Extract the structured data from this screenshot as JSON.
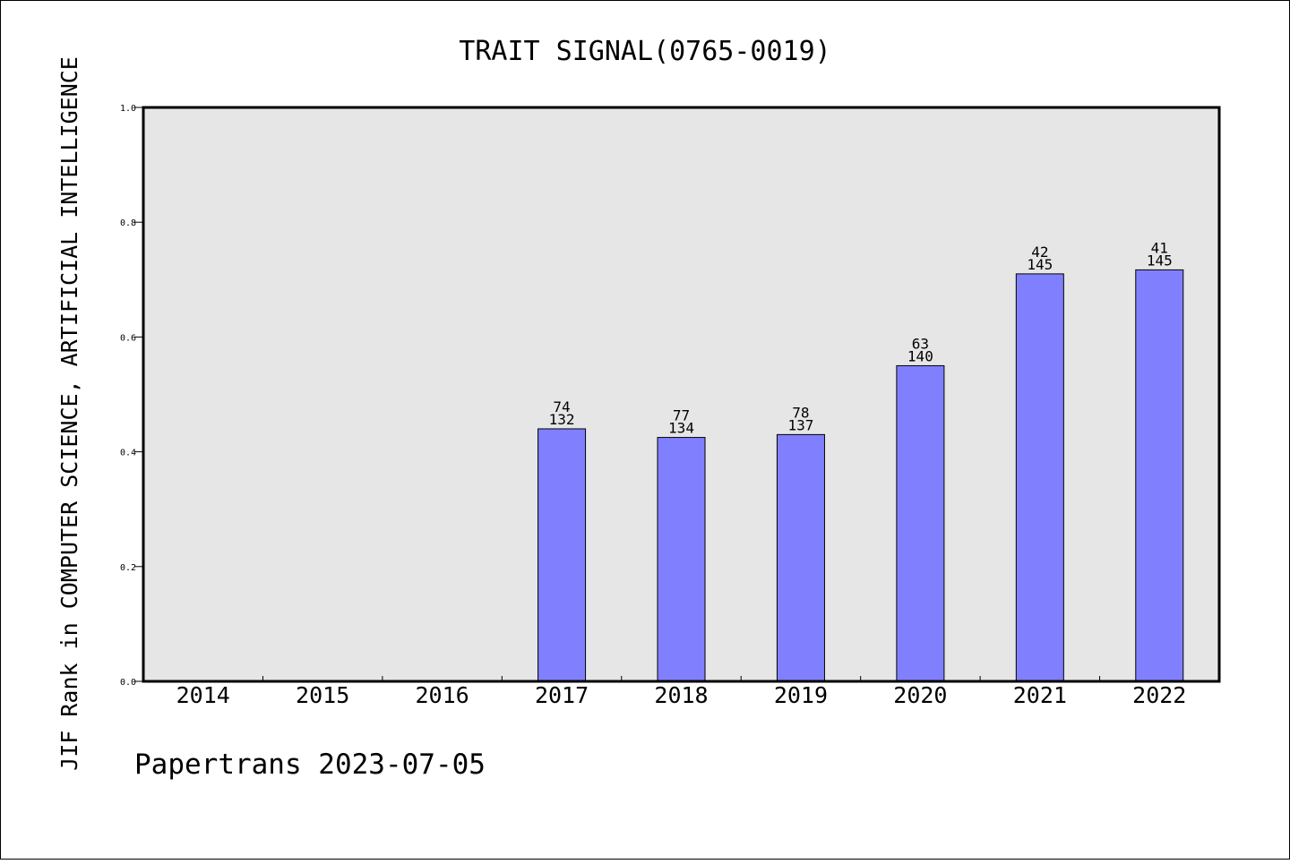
{
  "chart_data": {
    "type": "bar",
    "title": "TRAIT SIGNAL(0765-0019)",
    "xlabel": "",
    "ylabel": "JIF Rank in COMPUTER SCIENCE, ARTIFICIAL INTELLIGENCE",
    "footer": "Papertrans 2023-07-05",
    "categories": [
      "2014",
      "2015",
      "2016",
      "2017",
      "2018",
      "2019",
      "2020",
      "2021",
      "2022"
    ],
    "values": [
      null,
      null,
      null,
      0.44,
      0.425,
      0.43,
      0.55,
      0.71,
      0.717
    ],
    "rank_labels": [
      null,
      null,
      null,
      "74",
      "77",
      "78",
      "63",
      "42",
      "41"
    ],
    "total_labels": [
      null,
      null,
      null,
      "132",
      "134",
      "137",
      "140",
      "145",
      "145"
    ],
    "ylim": [
      0,
      1.0
    ],
    "yticks": [
      "0.0",
      "0.2",
      "0.4",
      "0.6",
      "0.8",
      "1.0"
    ],
    "grid": false,
    "colors": {
      "bar": "#8080ff",
      "plot_background": "#e6e6e6",
      "axis": "#000000"
    }
  }
}
